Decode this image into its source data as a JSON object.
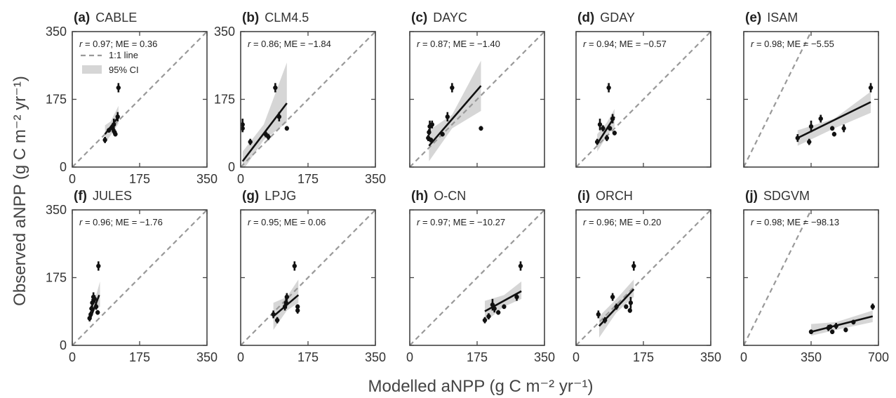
{
  "figure": {
    "xlabel": "Modelled aNPP (g C m⁻² yr⁻¹)",
    "ylabel": "Observed aNPP (g C m⁻² yr⁻¹)",
    "legend": {
      "line_label": "1:1 line",
      "ci_label": "95% CI",
      "placement": "panel-a top-left"
    }
  },
  "colors": {
    "points": "#111111",
    "fit": "#111111",
    "ci_band": "#d6d6d6",
    "one_to_one": "#999999",
    "axes": "#444444"
  },
  "chart_data": [
    {
      "type": "scatter",
      "letter": "(a)",
      "title": "CABLE",
      "stat": "r = 0.97; ME = 0.36",
      "xlim": [
        0,
        350
      ],
      "ylim": [
        0,
        350
      ],
      "xticks": [
        "0",
        "175",
        "350"
      ],
      "yticks": [
        "0",
        "175",
        "350"
      ],
      "points": [
        [
          85,
          70,
          8
        ],
        [
          95,
          95,
          6
        ],
        [
          105,
          100,
          10
        ],
        [
          108,
          110,
          15
        ],
        [
          110,
          90,
          8
        ],
        [
          112,
          85,
          6
        ],
        [
          118,
          130,
          12
        ],
        [
          120,
          205,
          12
        ]
      ],
      "fit": [
        [
          85,
          85
        ],
        [
          120,
          130
        ]
      ],
      "ci": [
        [
          85,
          62,
          108
        ],
        [
          100,
          82,
          118
        ],
        [
          120,
          112,
          158
        ]
      ]
    },
    {
      "type": "scatter",
      "letter": "(b)",
      "title": "CLM4.5",
      "stat": "r = 0.86; ME = −1.84",
      "xlim": [
        0,
        350
      ],
      "ylim": [
        0,
        350
      ],
      "xticks": [
        "0",
        "175",
        "350"
      ],
      "yticks": [
        "0",
        "175",
        "350"
      ],
      "points": [
        [
          5,
          110,
          15
        ],
        [
          5,
          100,
          10
        ],
        [
          25,
          65,
          8
        ],
        [
          65,
          85,
          8
        ],
        [
          72,
          78,
          8
        ],
        [
          90,
          205,
          12
        ],
        [
          100,
          130,
          12
        ],
        [
          120,
          100,
          6
        ]
      ],
      "fit": [
        [
          5,
          15
        ],
        [
          120,
          165
        ]
      ],
      "ci": [
        [
          5,
          -10,
          40
        ],
        [
          60,
          70,
          110
        ],
        [
          120,
          115,
          270
        ]
      ]
    },
    {
      "type": "scatter",
      "letter": "(c)",
      "title": "DAYC",
      "stat": "r = 0.87; ME = −1.40",
      "xlim": [
        0,
        350
      ],
      "ylim": [
        0,
        350
      ],
      "xticks": [],
      "yticks": [],
      "points": [
        [
          48,
          75,
          8
        ],
        [
          50,
          90,
          8
        ],
        [
          52,
          105,
          15
        ],
        [
          55,
          70,
          6
        ],
        [
          58,
          110,
          10
        ],
        [
          85,
          85,
          6
        ],
        [
          98,
          130,
          12
        ],
        [
          110,
          205,
          12
        ],
        [
          185,
          100,
          6
        ]
      ],
      "fit": [
        [
          50,
          55
        ],
        [
          185,
          210
        ]
      ],
      "ci": [
        [
          50,
          15,
          95
        ],
        [
          110,
          100,
          135
        ],
        [
          185,
          145,
          275
        ]
      ]
    },
    {
      "type": "scatter",
      "letter": "(d)",
      "title": "GDAY",
      "stat": "r = 0.94; ME = −0.57",
      "xlim": [
        0,
        350
      ],
      "ylim": [
        0,
        350
      ],
      "xticks": [],
      "yticks": [],
      "points": [
        [
          55,
          65,
          8
        ],
        [
          62,
          110,
          15
        ],
        [
          70,
          100,
          8
        ],
        [
          80,
          75,
          8
        ],
        [
          85,
          205,
          12
        ],
        [
          88,
          100,
          6
        ],
        [
          95,
          125,
          12
        ],
        [
          100,
          88,
          6
        ]
      ],
      "fit": [
        [
          55,
          60
        ],
        [
          100,
          130
        ]
      ],
      "ci": [
        [
          55,
          40,
          85
        ],
        [
          80,
          80,
          115
        ],
        [
          100,
          105,
          150
        ]
      ]
    },
    {
      "type": "scatter",
      "letter": "(e)",
      "title": "ISAM",
      "stat": "r = 0.98; ME = −5.55",
      "xlim": [
        0,
        700
      ],
      "ylim": [
        0,
        350
      ],
      "xticks": [],
      "yticks": [],
      "points": [
        [
          280,
          75,
          10
        ],
        [
          340,
          65,
          8
        ],
        [
          350,
          105,
          15
        ],
        [
          400,
          125,
          10
        ],
        [
          460,
          100,
          6
        ],
        [
          470,
          85,
          6
        ],
        [
          520,
          100,
          10
        ],
        [
          660,
          205,
          12
        ]
      ],
      "fit": [
        [
          280,
          75
        ],
        [
          660,
          168
        ]
      ],
      "ci": [
        [
          280,
          55,
          95
        ],
        [
          470,
          100,
          125
        ],
        [
          660,
          140,
          195
        ]
      ]
    },
    {
      "type": "scatter",
      "letter": "(f)",
      "title": "JULES",
      "stat": "r = 0.96; ME = −1.76",
      "xlim": [
        0,
        350
      ],
      "ylim": [
        0,
        350
      ],
      "xticks": [
        "0",
        "175",
        "350"
      ],
      "yticks": [
        "0",
        "175",
        "350"
      ],
      "points": [
        [
          45,
          70,
          8
        ],
        [
          48,
          80,
          8
        ],
        [
          50,
          95,
          8
        ],
        [
          52,
          110,
          10
        ],
        [
          55,
          125,
          12
        ],
        [
          58,
          120,
          10
        ],
        [
          62,
          100,
          8
        ],
        [
          66,
          85,
          6
        ],
        [
          68,
          205,
          12
        ]
      ],
      "fit": [
        [
          45,
          65
        ],
        [
          70,
          130
        ]
      ],
      "ci": [
        [
          45,
          55,
          80
        ],
        [
          58,
          90,
          115
        ],
        [
          72,
          100,
          165
        ]
      ]
    },
    {
      "type": "scatter",
      "letter": "(g)",
      "title": "LPJG",
      "stat": "r = 0.95; ME = 0.06",
      "xlim": [
        0,
        350
      ],
      "ylim": [
        0,
        350
      ],
      "xticks": [
        "0",
        "175",
        "350"
      ],
      "yticks": [],
      "points": [
        [
          85,
          80,
          10
        ],
        [
          95,
          65,
          8
        ],
        [
          115,
          100,
          10
        ],
        [
          118,
          110,
          15
        ],
        [
          120,
          125,
          10
        ],
        [
          140,
          205,
          12
        ],
        [
          148,
          90,
          8
        ],
        [
          148,
          100,
          6
        ]
      ],
      "fit": [
        [
          85,
          75
        ],
        [
          150,
          130
        ]
      ],
      "ci": [
        [
          85,
          40,
          110
        ],
        [
          120,
          90,
          125
        ],
        [
          150,
          110,
          170
        ]
      ]
    },
    {
      "type": "scatter",
      "letter": "(h)",
      "title": "O-CN",
      "stat": "r = 0.97; ME = −10.27",
      "xlim": [
        0,
        350
      ],
      "ylim": [
        0,
        350
      ],
      "xticks": [
        "0",
        "175",
        "350"
      ],
      "yticks": [],
      "points": [
        [
          195,
          65,
          8
        ],
        [
          205,
          75,
          8
        ],
        [
          215,
          105,
          15
        ],
        [
          220,
          95,
          10
        ],
        [
          230,
          85,
          6
        ],
        [
          245,
          100,
          6
        ],
        [
          278,
          125,
          10
        ],
        [
          288,
          205,
          12
        ]
      ],
      "fit": [
        [
          195,
          88
        ],
        [
          290,
          140
        ]
      ],
      "ci": [
        [
          195,
          60,
          115
        ],
        [
          245,
          100,
          130
        ],
        [
          290,
          120,
          165
        ]
      ]
    },
    {
      "type": "scatter",
      "letter": "(i)",
      "title": "ORCH",
      "stat": "r = 0.96; ME = 0.20",
      "xlim": [
        0,
        350
      ],
      "ylim": [
        0,
        350
      ],
      "xticks": [
        "0",
        "175",
        "350"
      ],
      "yticks": [],
      "points": [
        [
          58,
          80,
          10
        ],
        [
          75,
          65,
          8
        ],
        [
          95,
          125,
          10
        ],
        [
          105,
          100,
          8
        ],
        [
          130,
          100,
          6
        ],
        [
          140,
          90,
          6
        ],
        [
          142,
          110,
          15
        ],
        [
          150,
          205,
          12
        ]
      ],
      "fit": [
        [
          60,
          50
        ],
        [
          150,
          145
        ]
      ],
      "ci": [
        [
          60,
          20,
          75
        ],
        [
          105,
          85,
          120
        ],
        [
          150,
          125,
          170
        ]
      ]
    },
    {
      "type": "scatter",
      "letter": "(j)",
      "title": "SDGVM",
      "stat": "r = 0.98; ME = −98.13",
      "xlim": [
        0,
        700
      ],
      "ylim": [
        0,
        350
      ],
      "xticks": [
        "0",
        "350",
        "700"
      ],
      "yticks": [],
      "points": [
        [
          350,
          35,
          6
        ],
        [
          440,
          45,
          8
        ],
        [
          450,
          48,
          6
        ],
        [
          460,
          35,
          6
        ],
        [
          480,
          50,
          8
        ],
        [
          530,
          40,
          6
        ],
        [
          570,
          60,
          6
        ],
        [
          670,
          100,
          8
        ]
      ],
      "fit": [
        [
          350,
          35
        ],
        [
          670,
          75
        ]
      ],
      "ci": [
        [
          350,
          25,
          55
        ],
        [
          480,
          40,
          60
        ],
        [
          670,
          60,
          90
        ]
      ]
    }
  ]
}
